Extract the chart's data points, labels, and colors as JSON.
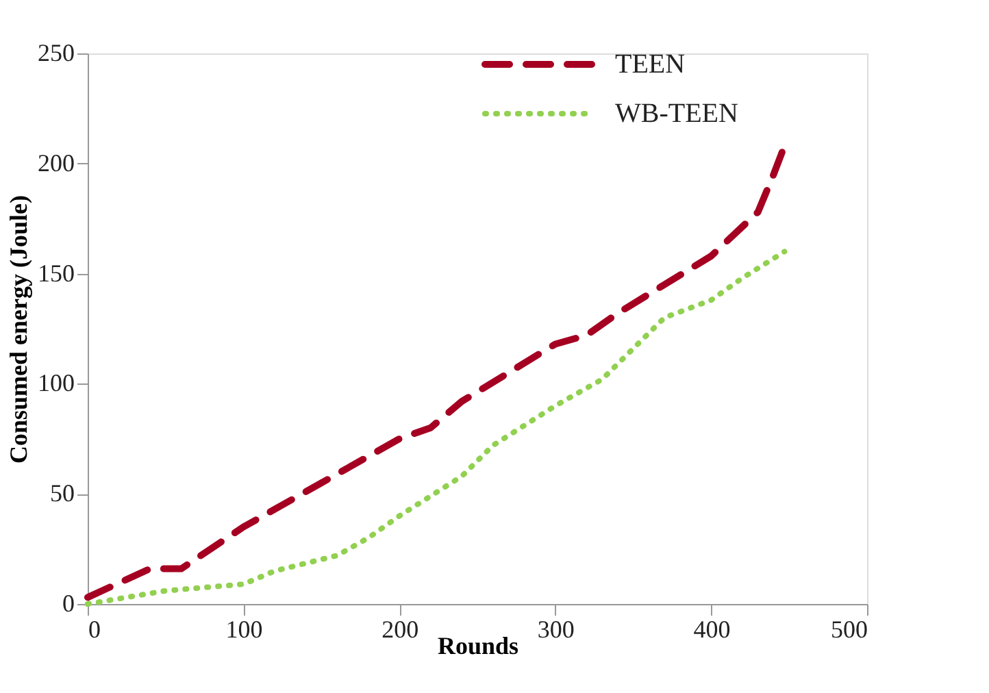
{
  "chart_data": {
    "type": "line",
    "xlabel": "Rounds",
    "ylabel": "Consumed energy (Joule)",
    "xlim": [
      0,
      500
    ],
    "xticks": [
      0,
      100,
      200,
      300,
      400,
      500
    ],
    "ylim": [
      0,
      250
    ],
    "yticks": [
      0,
      50,
      100,
      150,
      200,
      250
    ],
    "grid": false,
    "legend": "top right",
    "marker": "none",
    "series": [
      {
        "name": "TEEN",
        "color": "#a50021",
        "line_style": "dashed",
        "x": [
          0,
          40,
          60,
          100,
          150,
          200,
          220,
          240,
          300,
          320,
          340,
          400,
          430,
          440,
          447
        ],
        "values": [
          3,
          16,
          16,
          35,
          55,
          75,
          80,
          92,
          118,
          122,
          132,
          158,
          178,
          195,
          208
        ]
      },
      {
        "name": "WB-TEEN",
        "color": "#92d050",
        "line_style": "dotted",
        "x": [
          0,
          50,
          100,
          120,
          160,
          180,
          200,
          240,
          260,
          300,
          330,
          370,
          400,
          420,
          447
        ],
        "values": [
          0,
          6,
          9,
          15,
          22,
          30,
          40,
          58,
          72,
          90,
          102,
          130,
          138,
          148,
          160
        ]
      }
    ]
  }
}
